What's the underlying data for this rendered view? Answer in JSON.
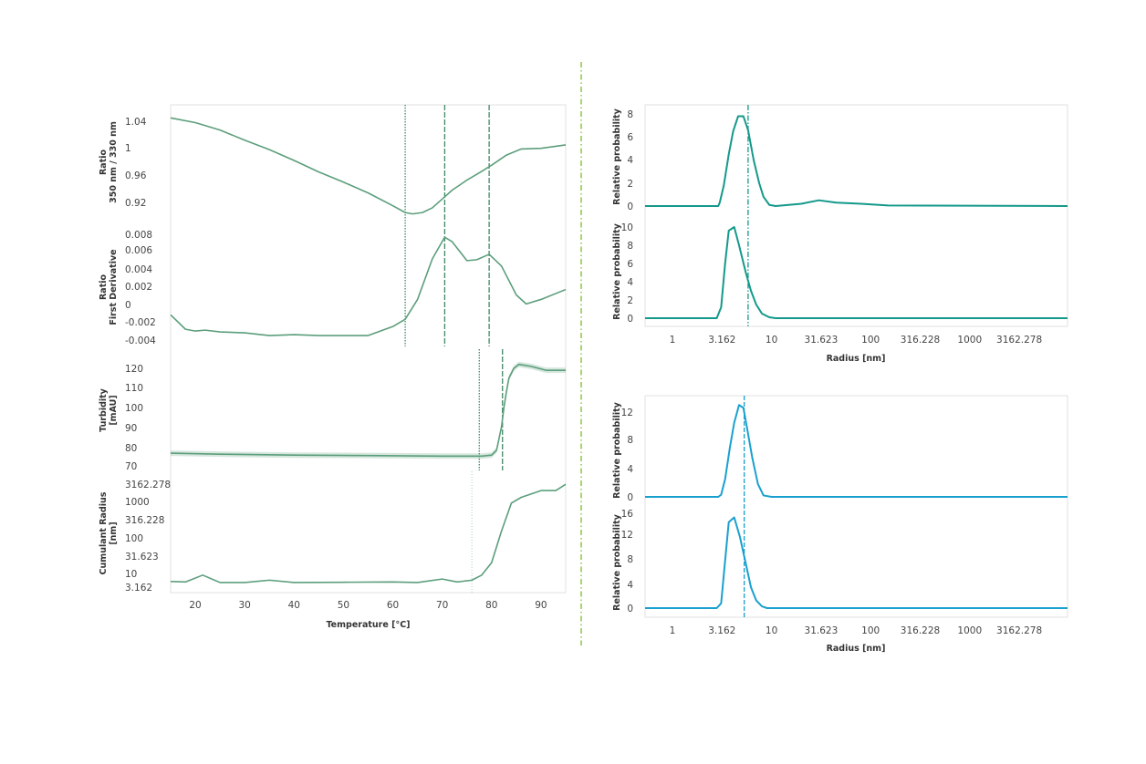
{
  "colors": {
    "left_series": "#5c9e7c",
    "right_top_series": "#14998a",
    "right_bottom_series": "#1aa0cf",
    "separator": "#8dc63f",
    "frame": "#e2e2e2"
  },
  "chart_data": [
    {
      "type": "line",
      "id": "left",
      "xlabel": "Temperature [°C]",
      "xlim": [
        15,
        95
      ],
      "xticks": [
        20,
        30,
        40,
        50,
        60,
        70,
        80,
        90
      ],
      "grid": false,
      "subplots": [
        {
          "id": "ratio",
          "ylabel": [
            "Ratio",
            "350 nm / 330 nm"
          ],
          "yscale": "linear",
          "yticks": [
            "1.04",
            "1",
            "0.96",
            "0.92"
          ],
          "vlines": [
            {
              "x": 62.5,
              "style": "dotted"
            },
            {
              "x": 70.5,
              "style": "dashed"
            },
            {
              "x": 79.5,
              "style": "dashed"
            }
          ],
          "x": [
            15,
            20,
            25,
            30,
            35,
            40,
            45,
            50,
            55,
            60,
            62.5,
            64,
            66,
            68,
            70,
            72,
            75,
            78,
            80,
            83,
            86,
            90,
            95
          ],
          "y": [
            1.045,
            1.038,
            1.027,
            1.012,
            0.998,
            0.982,
            0.965,
            0.95,
            0.934,
            0.915,
            0.905,
            0.903,
            0.905,
            0.912,
            0.925,
            0.938,
            0.953,
            0.966,
            0.975,
            0.99,
            0.999,
            1.0,
            1.005
          ]
        },
        {
          "id": "derivative",
          "ylabel": [
            "Ratio",
            "First Derivative"
          ],
          "yscale": "linear",
          "yticks": [
            "0.008",
            "0.006",
            "0.004",
            "0.002",
            "0",
            "-0.002",
            "-0.004"
          ],
          "vlines": [
            {
              "x": 62.5,
              "style": "dotted"
            },
            {
              "x": 70.5,
              "style": "dashed"
            },
            {
              "x": 79.5,
              "style": "dashed"
            }
          ],
          "x": [
            15,
            18,
            20,
            22,
            25,
            30,
            35,
            40,
            45,
            50,
            55,
            60,
            62.5,
            65,
            68,
            70.5,
            72,
            75,
            77,
            79.5,
            82,
            85,
            87,
            90,
            95
          ],
          "y": [
            -0.0012,
            -0.0028,
            -0.003,
            -0.0029,
            -0.0031,
            -0.0032,
            -0.0035,
            -0.0034,
            -0.0035,
            -0.0035,
            -0.0035,
            -0.0025,
            -0.0017,
            0.0005,
            0.005,
            0.0074,
            0.0069,
            0.0048,
            0.0049,
            0.0055,
            0.0042,
            0.001,
            0.0,
            0.0005,
            0.0016
          ]
        },
        {
          "id": "turbidity",
          "ylabel": [
            "Turbidity",
            "[mAU]"
          ],
          "yscale": "linear",
          "band": true,
          "yticks": [
            "120",
            "110",
            "100",
            "90",
            "80",
            "70"
          ],
          "vlines": [
            {
              "x": 77.5,
              "style": "dotted"
            },
            {
              "x": 82.2,
              "style": "dashed"
            }
          ],
          "x": [
            15,
            25,
            40,
            55,
            70,
            78,
            80,
            81,
            82,
            82.5,
            83,
            83.5,
            84.5,
            85.5,
            88,
            91,
            95
          ],
          "y": [
            76.5,
            76,
            75.5,
            75.3,
            75,
            75,
            75.5,
            78,
            90,
            100,
            108,
            115,
            120,
            122,
            121,
            119,
            119
          ]
        },
        {
          "id": "cumulant-radius",
          "ylabel": [
            "Cumulant Radius",
            "[nm]"
          ],
          "yscale": "log",
          "yticks": [
            "3162.278",
            "1000",
            "316.228",
            "100",
            "31.623",
            "10",
            "3.162"
          ],
          "vlines": [
            {
              "x": 76,
              "style": "faint"
            }
          ],
          "x": [
            15,
            18,
            21.5,
            25,
            30,
            35,
            40,
            50,
            60,
            65,
            70,
            73,
            76,
            78,
            80,
            82,
            84,
            86,
            90,
            93,
            95
          ],
          "y": [
            6,
            5.8,
            9,
            5.6,
            5.6,
            6.5,
            5.6,
            5.7,
            5.8,
            5.6,
            7,
            5.8,
            6.5,
            9,
            20,
            150,
            900,
            1300,
            2000,
            2000,
            3000
          ]
        }
      ]
    },
    {
      "type": "line",
      "id": "right-top",
      "xlabel": "Radius [nm]",
      "xscale": "log",
      "xticks": [
        "1",
        "3.162",
        "10",
        "31.623",
        "100",
        "316.228",
        "1000",
        "3162.278"
      ],
      "vline_x": 5.8,
      "subplots": [
        {
          "id": "a",
          "ylabel": "Relative probability",
          "yticks": [
            "8",
            "6",
            "4",
            "2",
            "0"
          ],
          "x": [
            0.5,
            2.9,
            3.0,
            3.3,
            3.7,
            4.1,
            4.6,
            5.2,
            5.8,
            6.6,
            7.5,
            8.3,
            9.5,
            11,
            20,
            30,
            45,
            80,
            150,
            10000
          ],
          "y": [
            0,
            0,
            0.3,
            1.8,
            4.5,
            6.5,
            7.8,
            7.8,
            6.6,
            4,
            2,
            0.8,
            0.1,
            0,
            0.2,
            0.5,
            0.3,
            0.2,
            0.05,
            0
          ]
        },
        {
          "id": "b",
          "ylabel": "Relative probability",
          "yticks": [
            "10",
            "8",
            "6",
            "4",
            "2",
            "0"
          ],
          "x": [
            0.5,
            2.8,
            3.1,
            3.4,
            3.7,
            4.2,
            4.7,
            5.5,
            6.2,
            7,
            8,
            9.5,
            11,
            10000
          ],
          "y": [
            0,
            0,
            1.2,
            6,
            9.6,
            10,
            8,
            5,
            3,
            1.5,
            0.5,
            0.1,
            0,
            0
          ]
        }
      ]
    },
    {
      "type": "line",
      "id": "right-bottom",
      "xlabel": "Radius [nm]",
      "xscale": "log",
      "xticks": [
        "1",
        "3.162",
        "10",
        "31.623",
        "100",
        "316.228",
        "1000",
        "3162.278"
      ],
      "vline_x": 5.3,
      "subplots": [
        {
          "id": "c",
          "ylabel": "Relative probability",
          "yticks": [
            "12",
            "8",
            "4",
            "0"
          ],
          "x": [
            0.5,
            2.9,
            3.1,
            3.4,
            3.8,
            4.2,
            4.7,
            5.2,
            5.7,
            6.4,
            7.3,
            8.3,
            10,
            10000
          ],
          "y": [
            0,
            0,
            0.3,
            2.5,
            7,
            10.5,
            13,
            12.6,
            9.5,
            5.5,
            1.8,
            0.2,
            0,
            0
          ]
        },
        {
          "id": "d",
          "ylabel": "Relative probability",
          "yticks": [
            "16",
            "12",
            "8",
            "4",
            "0"
          ],
          "x": [
            0.5,
            2.8,
            3.1,
            3.4,
            3.7,
            4.2,
            4.8,
            5.5,
            6.2,
            7,
            8,
            9,
            10000
          ],
          "y": [
            0,
            0,
            0.8,
            8,
            14.5,
            15.3,
            12,
            7.5,
            3.5,
            1.3,
            0.3,
            0,
            0
          ]
        }
      ]
    }
  ]
}
